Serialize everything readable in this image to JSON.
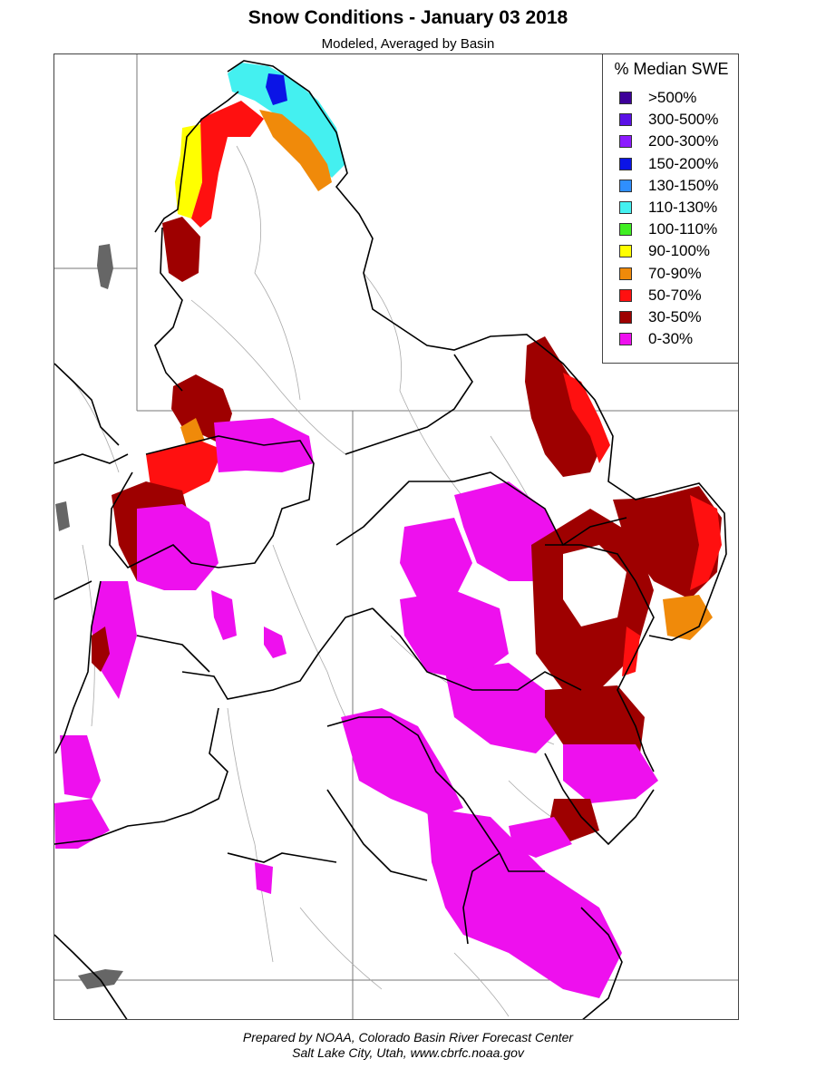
{
  "header": {
    "title": "Snow Conditions - January 03 2018",
    "subtitle": "Modeled, Averaged by Basin"
  },
  "legend": {
    "title": "% Median SWE",
    "items": [
      {
        "label": ">500%",
        "color": "#3d0099"
      },
      {
        "label": "300-500%",
        "color": "#5a10e6"
      },
      {
        "label": "200-300%",
        "color": "#8c1aff"
      },
      {
        "label": "150-200%",
        "color": "#0b14e6"
      },
      {
        "label": "130-150%",
        "color": "#2f8fff"
      },
      {
        "label": "110-130%",
        "color": "#44f0f0"
      },
      {
        "label": "100-110%",
        "color": "#40ee22"
      },
      {
        "label": "90-100%",
        "color": "#ffff00"
      },
      {
        "label": "70-90%",
        "color": "#f08a0a"
      },
      {
        "label": "50-70%",
        "color": "#ff1010"
      },
      {
        "label": "30-50%",
        "color": "#9e0000"
      },
      {
        "label": "0-30%",
        "color": "#ee10ee"
      }
    ]
  },
  "footer": {
    "line1": "Prepared by NOAA, Colorado Basin River Forecast Center",
    "line2": "Salt Lake City, Utah, www.cbrfc.noaa.gov"
  }
}
